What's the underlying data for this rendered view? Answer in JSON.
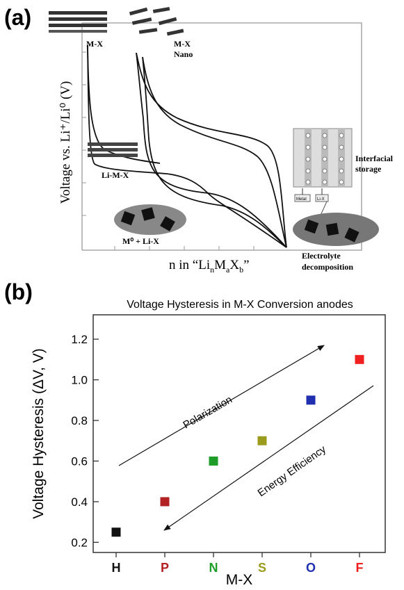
{
  "panel_a": {
    "label": "(a)",
    "ylabel": "Voltage vs. Li⁺/Li⁰ (V)",
    "xlabel": "n in “LiₙMₐXᵦ”",
    "xlabel_parts": {
      "pre": "n in “Li",
      "sub1": "n",
      "m": "M",
      "sub2": "a",
      "x": "X",
      "sub3": "b",
      "post": "”"
    },
    "annotations": {
      "mx": "M-X",
      "mx_nano_1": "M-X",
      "mx_nano_2": "Nano",
      "limx": "Li-M-X",
      "m0lix": "M⁰ + Li-X",
      "interfacial_1": "Interfacial",
      "interfacial_2": "storage",
      "electrolyte_1": "Electrolyte",
      "electrolyte_2": "decomposition",
      "metal": "Metal",
      "lix": "Li-X"
    }
  },
  "panel_b": {
    "label": "(b)",
    "arrow_up_label": "Polarization",
    "arrow_down_label": "Energy Efficiency"
  },
  "chart_data": [
    {
      "type": "line",
      "panel": "a",
      "title": "",
      "xlabel": "n in “LiₙMₐXᵦ”",
      "ylabel": "Voltage vs. Li⁺/Li⁰ (V)",
      "note": "schematic, no numeric axis values"
    },
    {
      "type": "scatter",
      "panel": "b",
      "title": "Voltage Hysteresis in M-X Conversion anodes",
      "xlabel": "M-X",
      "ylabel": "Voltage Hysteresis (ΔV, V)",
      "categories": [
        "H",
        "P",
        "N",
        "S",
        "O",
        "F"
      ],
      "values": [
        0.25,
        0.4,
        0.6,
        0.7,
        0.9,
        1.1
      ],
      "colors": [
        "#111111",
        "#b22222",
        "#1e9e28",
        "#9b9b1e",
        "#1f2fb0",
        "#f02020"
      ],
      "ylim": [
        0.15,
        1.32
      ],
      "yticks": [
        0.2,
        0.4,
        0.6,
        0.8,
        1.0,
        1.2
      ],
      "ytick_labels": [
        "0.2",
        "0.4",
        "0.6",
        "0.8",
        "1.0",
        "1.2"
      ],
      "grid": false,
      "legend": "none"
    }
  ]
}
